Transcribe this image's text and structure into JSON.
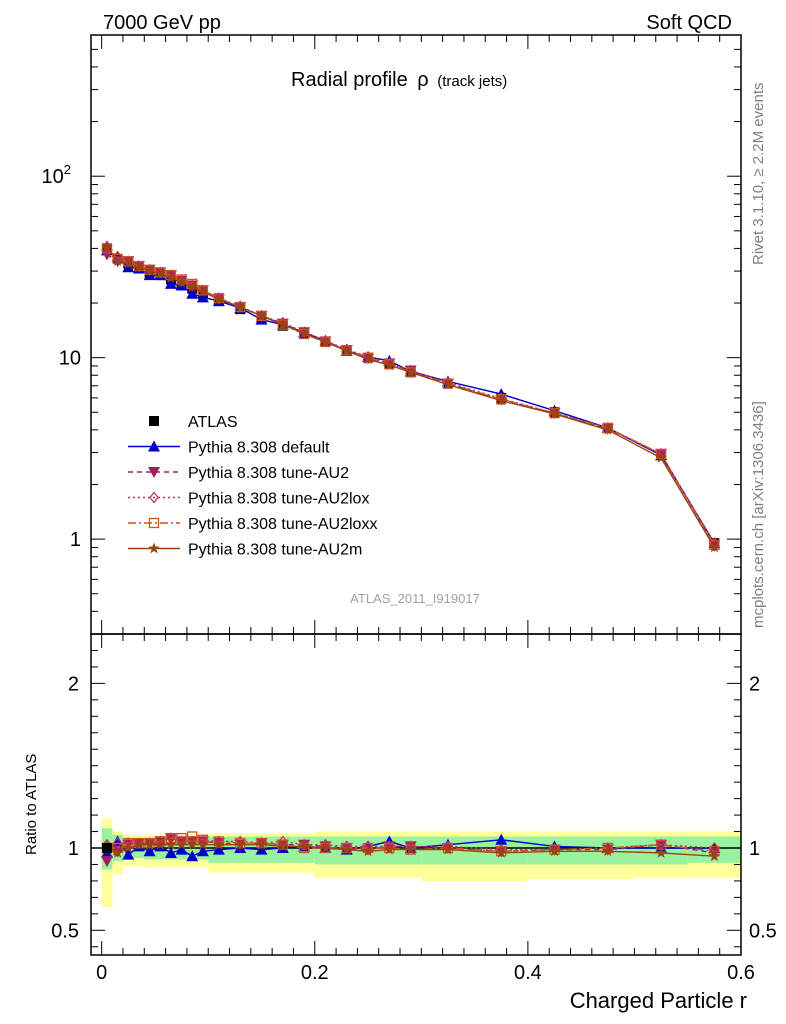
{
  "header": {
    "left": "7000 GeV pp",
    "right": "Soft QCD"
  },
  "side_labels": {
    "top": "Rivet 3.1.10, ≥ 2.2M events",
    "bottom": "mcplots.cern.ch [arXiv:1306.3436]"
  },
  "title": {
    "main": "Radial profile",
    "symbol": "ρ",
    "sub": "(track jets)"
  },
  "watermark": "ATLAS_2011_I919017",
  "chart_data": [
    {
      "type": "line",
      "panel": "main",
      "yscale": "log",
      "xlim": [
        -0.01,
        0.6
      ],
      "ylim": [
        0.3,
        600
      ],
      "ytick_labels": [
        {
          "value": 1,
          "label": "1"
        },
        {
          "value": 10,
          "label": "10"
        },
        {
          "value": 100,
          "label": "10",
          "exponent": "2"
        }
      ],
      "x": [
        0.005,
        0.015,
        0.025,
        0.035,
        0.045,
        0.055,
        0.065,
        0.075,
        0.085,
        0.095,
        0.11,
        0.13,
        0.15,
        0.17,
        0.19,
        0.21,
        0.23,
        0.25,
        0.27,
        0.29,
        0.325,
        0.375,
        0.425,
        0.475,
        0.525,
        0.575
      ],
      "series": [
        {
          "name": "ATLAS",
          "color": "#000000",
          "marker": "square",
          "dash": "none",
          "values": [
            40,
            35,
            33,
            31,
            29.5,
            28.5,
            27,
            25.5,
            24,
            22.5,
            20.5,
            18.5,
            16.5,
            15,
            13.5,
            12.2,
            11,
            10,
            9.2,
            8.4,
            7.2,
            6,
            5,
            4.1,
            2.9,
            0.95
          ]
        },
        {
          "name": "Pythia 8.308 default",
          "color": "#0000cc",
          "marker": "triangle-up",
          "dash": "none",
          "values": [
            39,
            36,
            31.5,
            31,
            28.5,
            28.5,
            25.5,
            25,
            22.5,
            21.5,
            20.5,
            18.8,
            16.2,
            15.2,
            13.8,
            12.4,
            10.9,
            10.1,
            9.6,
            8.4,
            7.4,
            6.3,
            5.1,
            4.1,
            2.9,
            0.95
          ]
        },
        {
          "name": "Pythia 8.308 tune-AU2",
          "color": "#a0205a",
          "marker": "triangle-down",
          "dash": "5,4",
          "values": [
            37,
            34,
            34,
            32,
            30.5,
            29.5,
            28.5,
            26.5,
            25,
            23.5,
            21,
            19,
            17,
            15.4,
            13.8,
            12.3,
            11,
            9.9,
            9.3,
            8.5,
            7.2,
            5.85,
            4.95,
            4.05,
            2.95,
            0.92
          ]
        },
        {
          "name": "Pythia 8.308 tune-AU2lox",
          "color": "#b83060",
          "marker": "diamond",
          "dash": "2,3",
          "values": [
            41,
            36,
            34,
            32,
            30.5,
            29.5,
            28.5,
            26.5,
            25,
            23.5,
            21.3,
            19.2,
            17,
            15.6,
            13.8,
            12.4,
            11.1,
            10.1,
            9.3,
            8.5,
            7.3,
            5.95,
            4.95,
            4.1,
            2.95,
            0.95
          ]
        },
        {
          "name": "Pythia 8.308 tune-AU2loxx",
          "color": "#cc5522",
          "marker": "square-open",
          "dash": "8,3,2,3",
          "values": [
            40,
            35,
            34,
            32,
            30.5,
            29.5,
            28.5,
            27,
            25.5,
            23.5,
            21.3,
            19,
            17,
            15.2,
            13.5,
            12.2,
            11,
            10,
            9.2,
            8.3,
            7.2,
            5.9,
            4.95,
            4.1,
            2.95,
            0.93
          ]
        },
        {
          "name": "Pythia 8.308 tune-AU2m",
          "color": "#994411",
          "marker": "star",
          "dash": "none",
          "values": [
            40.5,
            34,
            33,
            31.5,
            30,
            29,
            27.5,
            26,
            24.5,
            23,
            21,
            19,
            17,
            15.2,
            13.6,
            12.2,
            10.9,
            9.8,
            9.1,
            8.3,
            7.1,
            5.8,
            4.9,
            4,
            2.8,
            0.9
          ]
        }
      ]
    },
    {
      "type": "line",
      "panel": "ratio",
      "xlim": [
        -0.01,
        0.6
      ],
      "ylim": [
        0.35,
        2.3
      ],
      "ylabel": "Ratio to ATLAS",
      "xlabel": "Charged Particle r",
      "xtick_labels": [
        {
          "value": 0,
          "label": "0"
        },
        {
          "value": 0.2,
          "label": "0.2"
        },
        {
          "value": 0.4,
          "label": "0.4"
        },
        {
          "value": 0.6,
          "label": "0.6"
        }
      ],
      "ytick_labels": [
        {
          "value": 0.5,
          "label": "0.5"
        },
        {
          "value": 1,
          "label": "1"
        },
        {
          "value": 2,
          "label": "2"
        }
      ],
      "band_inner": [
        [
          0.0,
          0.01,
          0.87,
          1.12
        ],
        [
          0.01,
          0.02,
          0.92,
          1.08
        ],
        [
          0.02,
          0.04,
          0.94,
          1.06
        ],
        [
          0.04,
          0.1,
          0.93,
          1.06
        ],
        [
          0.1,
          0.2,
          0.91,
          1.07
        ],
        [
          0.2,
          0.3,
          0.9,
          1.07
        ],
        [
          0.3,
          0.4,
          0.9,
          1.07
        ],
        [
          0.4,
          0.5,
          0.9,
          1.07
        ],
        [
          0.5,
          0.55,
          0.9,
          1.07
        ],
        [
          0.55,
          0.6,
          0.91,
          1.07
        ]
      ],
      "band_outer": [
        [
          0.0,
          0.01,
          0.64,
          1.18
        ],
        [
          0.01,
          0.02,
          0.84,
          1.1
        ],
        [
          0.02,
          0.04,
          0.89,
          1.08
        ],
        [
          0.04,
          0.1,
          0.88,
          1.08
        ],
        [
          0.1,
          0.2,
          0.85,
          1.09
        ],
        [
          0.2,
          0.3,
          0.82,
          1.1
        ],
        [
          0.3,
          0.4,
          0.8,
          1.1
        ],
        [
          0.4,
          0.5,
          0.81,
          1.1
        ],
        [
          0.5,
          0.55,
          0.82,
          1.1
        ],
        [
          0.55,
          0.6,
          0.82,
          1.1
        ]
      ],
      "band_inner_color": "#99f39e",
      "band_outer_color": "#ffff99",
      "series_ratio": [
        {
          "name": "Pythia 8.308 default",
          "values": [
            0.97,
            1.04,
            0.96,
            1.01,
            0.98,
            1.01,
            0.97,
            0.99,
            0.95,
            0.98,
            0.99,
            1.0,
            0.99,
            1.0,
            1.01,
            1.0,
            0.99,
            1.01,
            1.04,
            1.0,
            1.02,
            1.05,
            1.01,
            1.0,
            1.0,
            1.0
          ]
        },
        {
          "name": "Pythia 8.308 tune-AU2",
          "values": [
            0.92,
            0.98,
            1.02,
            1.03,
            1.03,
            1.04,
            1.06,
            1.04,
            1.04,
            1.04,
            1.03,
            1.02,
            1.03,
            1.02,
            1.02,
            1.01,
            1.0,
            0.99,
            1.01,
            1.01,
            1.0,
            0.98,
            0.99,
            0.99,
            1.02,
            0.97
          ]
        },
        {
          "name": "Pythia 8.308 tune-AU2lox",
          "values": [
            1.02,
            1.03,
            1.03,
            1.03,
            1.03,
            1.04,
            1.06,
            1.04,
            1.04,
            1.04,
            1.04,
            1.04,
            1.03,
            1.04,
            1.02,
            1.02,
            1.01,
            1.01,
            1.01,
            1.01,
            1.01,
            0.99,
            0.99,
            1.0,
            1.02,
            1.0
          ]
        },
        {
          "name": "Pythia 8.308 tune-AU2loxx",
          "values": [
            1.0,
            1.0,
            1.03,
            1.03,
            1.03,
            1.04,
            1.06,
            1.06,
            1.07,
            1.05,
            1.04,
            1.03,
            1.03,
            1.02,
            1.0,
            1.0,
            1.0,
            1.0,
            1.0,
            0.99,
            1.0,
            0.98,
            0.99,
            1.0,
            1.02,
            0.98
          ]
        },
        {
          "name": "Pythia 8.308 tune-AU2m",
          "values": [
            1.01,
            0.97,
            1.0,
            1.02,
            1.02,
            1.02,
            1.02,
            1.02,
            1.02,
            1.02,
            1.02,
            1.02,
            1.02,
            1.01,
            1.01,
            1.0,
            0.99,
            0.98,
            0.99,
            0.99,
            0.99,
            0.97,
            0.98,
            0.98,
            0.97,
            0.95
          ]
        }
      ]
    }
  ]
}
